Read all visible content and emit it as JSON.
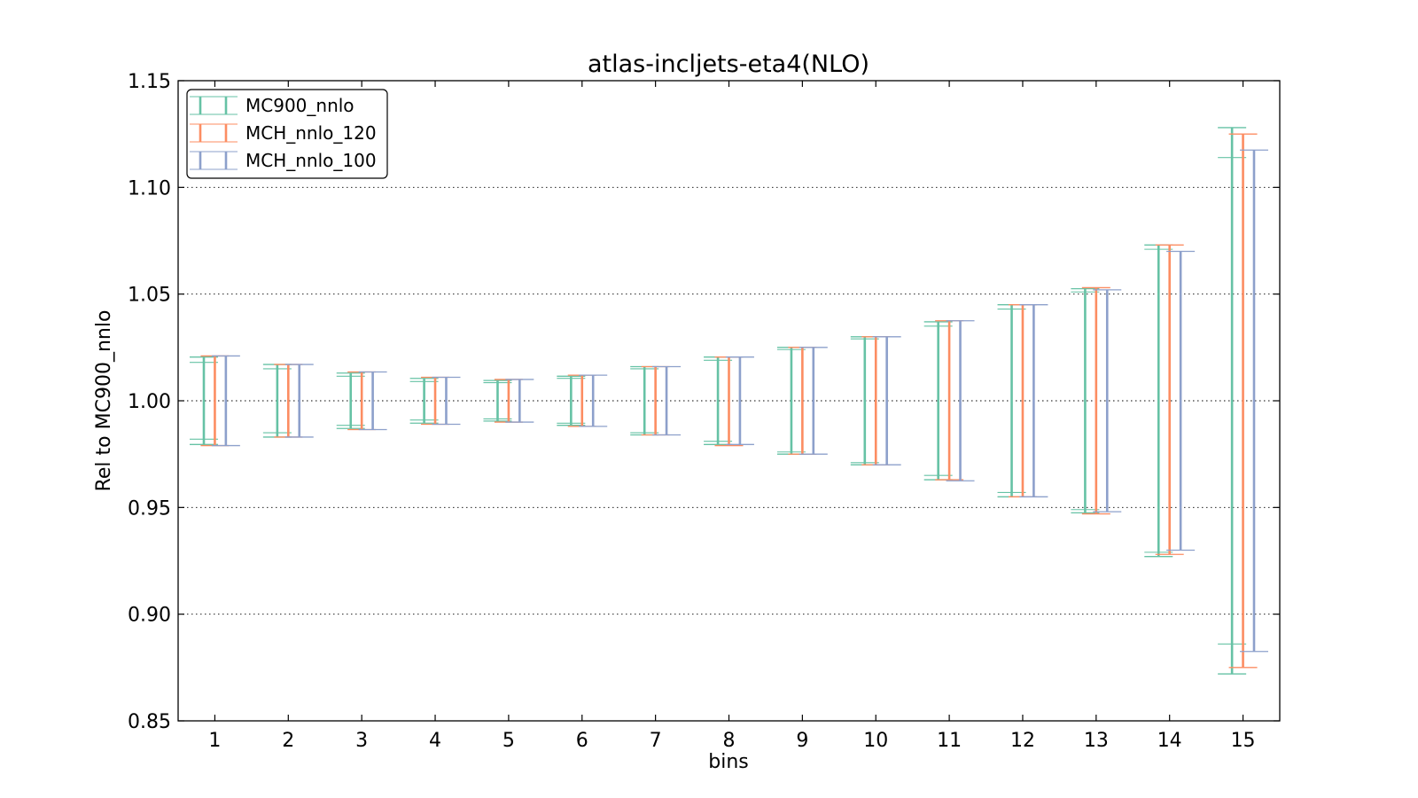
{
  "chart_data": {
    "type": "errorbar",
    "title": "atlas-incljets-eta4(NLO)",
    "xlabel": "bins",
    "ylabel": "Rel to MC900_nnlo",
    "xlim": [
      0.5,
      15.5
    ],
    "ylim": [
      0.85,
      1.15
    ],
    "yticks": [
      "0.85",
      "0.90",
      "0.95",
      "1.00",
      "1.05",
      "1.10",
      "1.15"
    ],
    "categories": [
      "1",
      "2",
      "3",
      "4",
      "5",
      "6",
      "7",
      "8",
      "9",
      "10",
      "11",
      "12",
      "13",
      "14",
      "15"
    ],
    "grid": "y-dotted",
    "legend_position": "top-left",
    "series": [
      {
        "name": "MC900_nnlo",
        "color": "#66c2a5",
        "offset": -0.15,
        "ranges": [
          [
            0.9795,
            1.0205
          ],
          [
            0.983,
            1.017
          ],
          [
            0.987,
            1.013
          ],
          [
            0.9895,
            1.0105
          ],
          [
            0.9905,
            1.0095
          ],
          [
            0.9885,
            1.0115
          ],
          [
            0.984,
            1.016
          ],
          [
            0.9795,
            1.0205
          ],
          [
            0.975,
            1.025
          ],
          [
            0.97,
            1.03
          ],
          [
            0.963,
            1.037
          ],
          [
            0.955,
            1.045
          ],
          [
            0.9475,
            1.0525
          ],
          [
            0.927,
            1.073
          ],
          [
            0.872,
            1.128
          ]
        ],
        "inner": [
          [
            0.982,
            1.018
          ],
          [
            0.985,
            1.015
          ],
          [
            0.9885,
            1.0115
          ],
          [
            0.991,
            1.009
          ],
          [
            0.9915,
            1.0085
          ],
          [
            0.9895,
            1.0105
          ],
          [
            0.985,
            1.015
          ],
          [
            0.981,
            1.019
          ],
          [
            0.976,
            1.024
          ],
          [
            0.971,
            1.029
          ],
          [
            0.965,
            1.035
          ],
          [
            0.957,
            1.043
          ],
          [
            0.949,
            1.051
          ],
          [
            0.929,
            1.071
          ],
          [
            0.886,
            1.114
          ]
        ]
      },
      {
        "name": "MCH_nnlo_120",
        "color": "#fc8d62",
        "offset": 0.0,
        "ranges": [
          [
            0.979,
            1.021
          ],
          [
            0.983,
            1.017
          ],
          [
            0.9865,
            1.0135
          ],
          [
            0.989,
            1.011
          ],
          [
            0.99,
            1.01
          ],
          [
            0.988,
            1.012
          ],
          [
            0.984,
            1.016
          ],
          [
            0.979,
            1.0205
          ],
          [
            0.975,
            1.025
          ],
          [
            0.97,
            1.03
          ],
          [
            0.963,
            1.0375
          ],
          [
            0.955,
            1.045
          ],
          [
            0.947,
            1.053
          ],
          [
            0.928,
            1.073
          ],
          [
            0.875,
            1.125
          ]
        ]
      },
      {
        "name": "MCH_nnlo_100",
        "color": "#8da0cb",
        "offset": 0.15,
        "ranges": [
          [
            0.979,
            1.021
          ],
          [
            0.983,
            1.017
          ],
          [
            0.9865,
            1.0135
          ],
          [
            0.989,
            1.011
          ],
          [
            0.99,
            1.01
          ],
          [
            0.988,
            1.012
          ],
          [
            0.984,
            1.016
          ],
          [
            0.9795,
            1.0205
          ],
          [
            0.975,
            1.025
          ],
          [
            0.97,
            1.03
          ],
          [
            0.9625,
            1.0375
          ],
          [
            0.955,
            1.045
          ],
          [
            0.948,
            1.052
          ],
          [
            0.93,
            1.07
          ],
          [
            0.8825,
            1.1175
          ]
        ]
      }
    ]
  }
}
